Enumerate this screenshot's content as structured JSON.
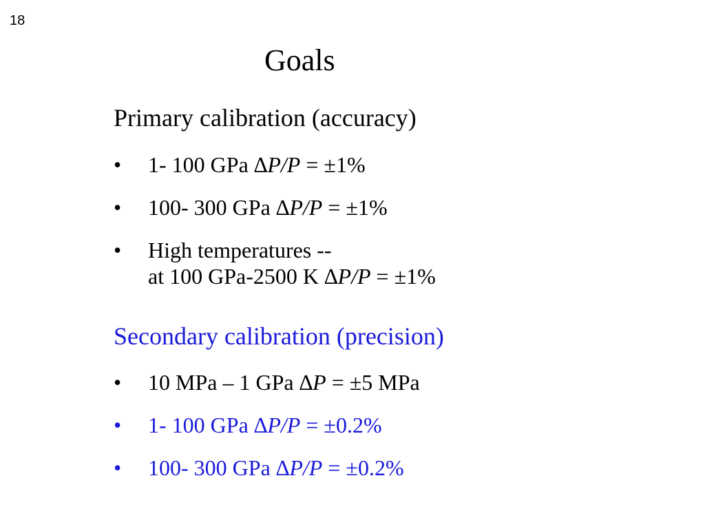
{
  "slide": {
    "number": "18",
    "title": "Goals"
  },
  "primary": {
    "heading": "Primary calibration (accuracy)",
    "items": [
      {
        "bullet": "•",
        "prefix": "1- 100 GPa ",
        "delta": "∆P/P",
        "suffix": " = ±1%"
      },
      {
        "bullet": "•",
        "prefix": "100- 300 GPa ",
        "delta": "∆P/P",
        "suffix": " = ±1%"
      },
      {
        "bullet": "•",
        "line1": "High temperatures --",
        "prefix": "at 100 GPa-2500 K ",
        "delta": "∆P/P",
        "suffix": " = ±1%"
      }
    ]
  },
  "secondary": {
    "heading": "Secondary calibration (precision)",
    "items": [
      {
        "bullet": "•",
        "prefix": "10 MPa – 1 GPa ",
        "delta": "∆P",
        "suffix": " = ±5 MPa"
      },
      {
        "bullet": "•",
        "prefix": "1- 100 GPa ",
        "delta": "∆P/P",
        "suffix": " = ±0.2%"
      },
      {
        "bullet": "•",
        "prefix": "100- 300 GPa ",
        "delta": "∆P/P",
        "suffix": " = ±0.2%"
      }
    ]
  },
  "colors": {
    "text": "#000000",
    "accent_blue": "#1a1ad9",
    "background": "#ffffff"
  }
}
